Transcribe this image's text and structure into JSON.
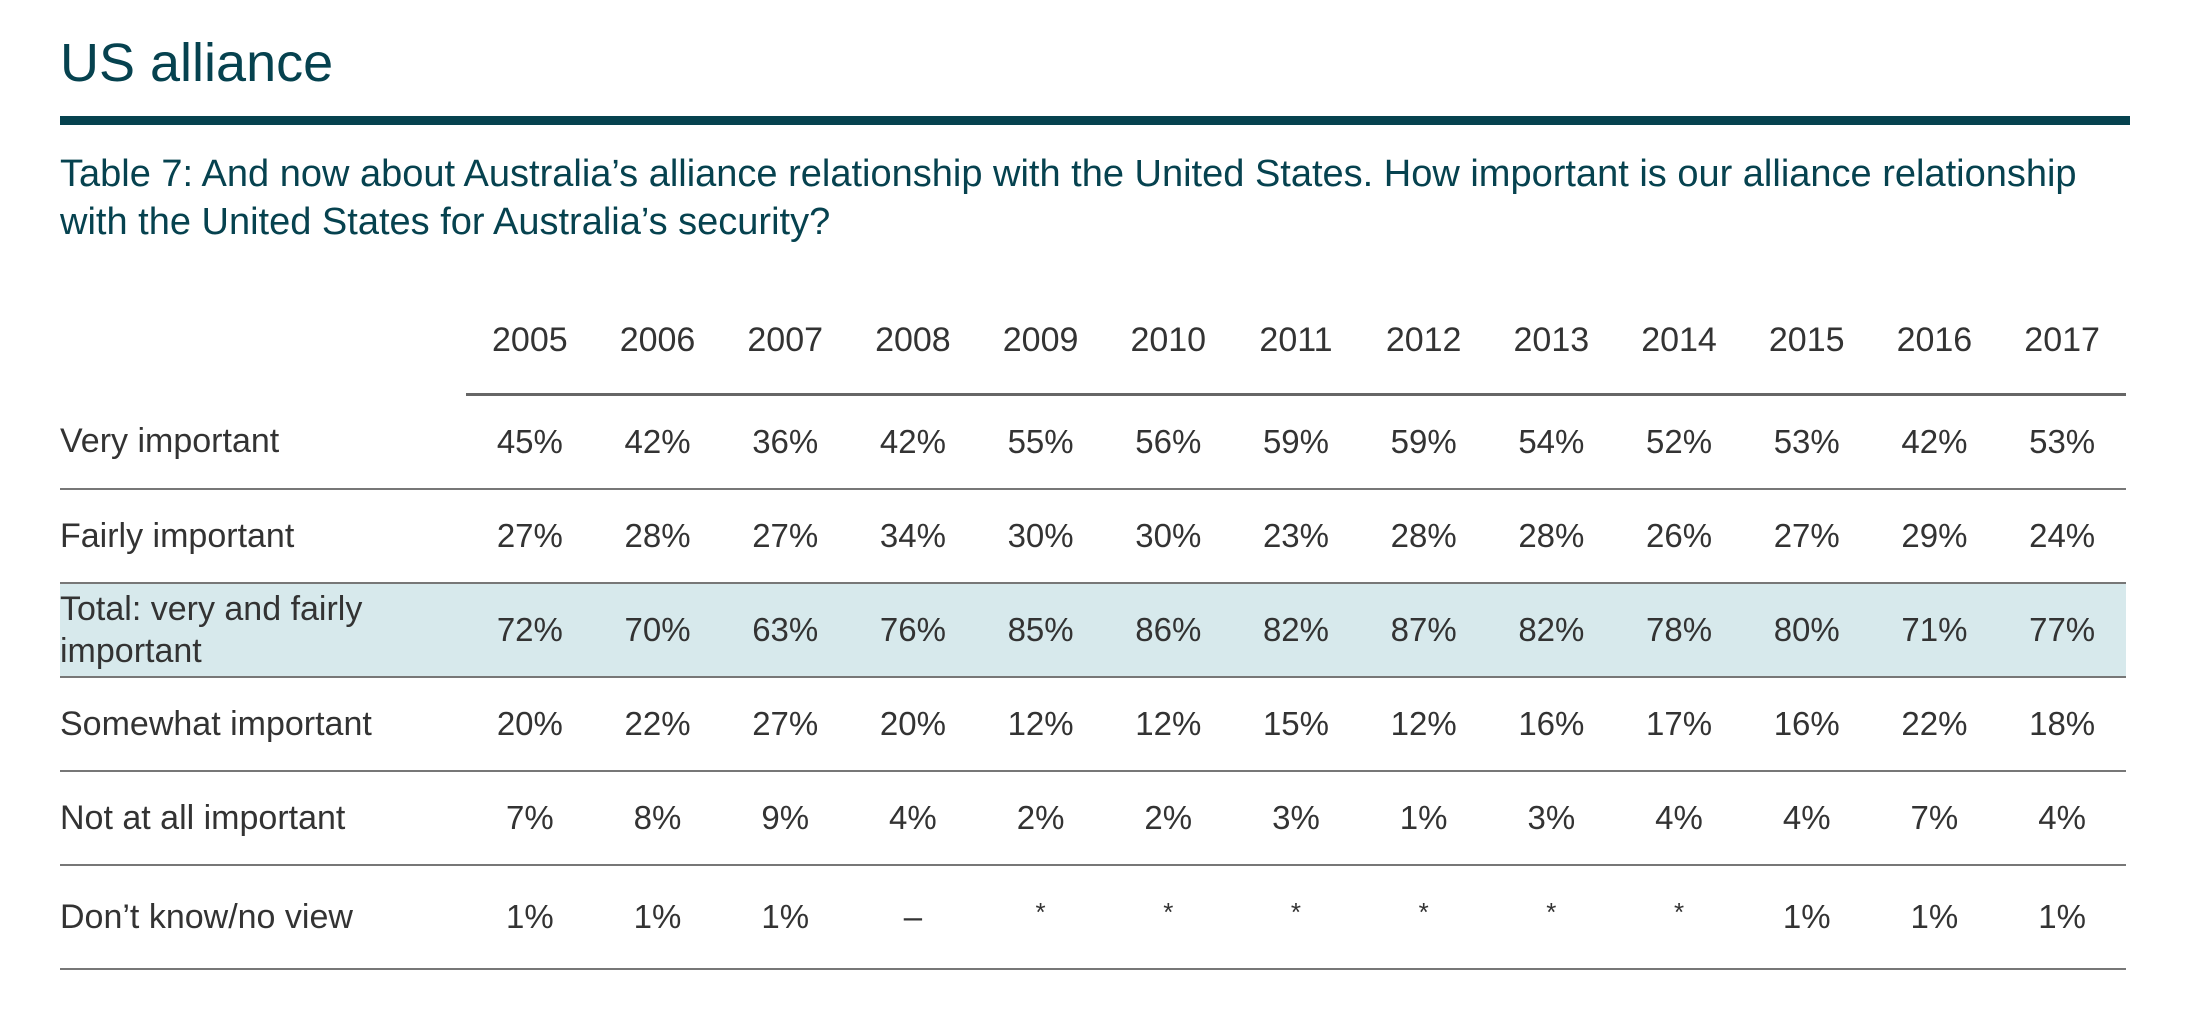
{
  "section_title": "US alliance",
  "chart_data": {
    "type": "table",
    "title": "Table 7: And now about Australia’s alliance relationship with the United States. How important is our alliance relationship with the United States for Australia’s security?",
    "columns": [
      "2005",
      "2006",
      "2007",
      "2008",
      "2009",
      "2010",
      "2011",
      "2012",
      "2013",
      "2014",
      "2015",
      "2016",
      "2017"
    ],
    "rows": [
      {
        "label": "Very important",
        "highlight": false,
        "values": [
          "45%",
          "42%",
          "36%",
          "42%",
          "55%",
          "56%",
          "59%",
          "59%",
          "54%",
          "52%",
          "53%",
          "42%",
          "53%"
        ]
      },
      {
        "label": "Fairly important",
        "highlight": false,
        "values": [
          "27%",
          "28%",
          "27%",
          "34%",
          "30%",
          "30%",
          "23%",
          "28%",
          "28%",
          "26%",
          "27%",
          "29%",
          "24%"
        ]
      },
      {
        "label": "Total: very and fairly important",
        "highlight": true,
        "values": [
          "72%",
          "70%",
          "63%",
          "76%",
          "85%",
          "86%",
          "82%",
          "87%",
          "82%",
          "78%",
          "80%",
          "71%",
          "77%"
        ]
      },
      {
        "label": "Somewhat important",
        "highlight": false,
        "values": [
          "20%",
          "22%",
          "27%",
          "20%",
          "12%",
          "12%",
          "15%",
          "12%",
          "16%",
          "17%",
          "16%",
          "22%",
          "18%"
        ]
      },
      {
        "label": "Not at all important",
        "highlight": false,
        "values": [
          "7%",
          "8%",
          "9%",
          "4%",
          "2%",
          "2%",
          "3%",
          "1%",
          "3%",
          "4%",
          "4%",
          "7%",
          "4%"
        ]
      },
      {
        "label": "Don’t know/no view",
        "highlight": false,
        "values": [
          "1%",
          "1%",
          "1%",
          "–",
          "*",
          "*",
          "*",
          "*",
          "*",
          "*",
          "1%",
          "1%",
          "1%"
        ]
      }
    ]
  },
  "colors": {
    "heading": "#06424f",
    "highlight_row": "#d7e9ec",
    "text": "#333333"
  }
}
